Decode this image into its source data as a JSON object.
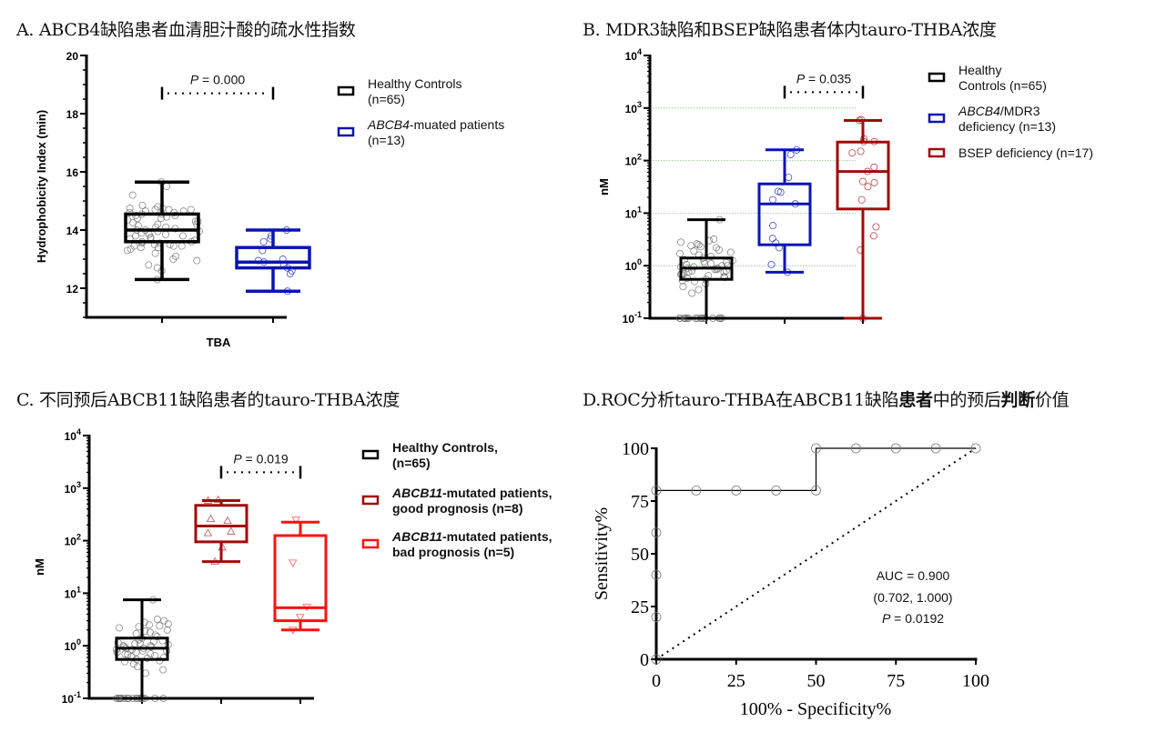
{
  "panels": {
    "A": {
      "title": "A. ABCB4缺陷患者血清胆汁酸的疏水性指数"
    },
    "B": {
      "title": "B. MDR3缺陷和BSEP缺陷患者体内tauro-THBA浓度"
    },
    "C": {
      "title": "C. 不同预后ABCB11缺陷患者的tauro-THBA浓度"
    },
    "D": {
      "title_a": "D.ROC分析tauro-THBA在ABCB11缺陷",
      "title_b": "患者",
      "title_c": "中的预后",
      "title_d": "判断",
      "title_e": "价值"
    }
  },
  "colors": {
    "black": "#000000",
    "blue": "#0a14b4",
    "darkred": "#a00a0a",
    "red": "#ff1010",
    "grid": "#8fbf8f"
  },
  "chart_data": [
    {
      "id": "A",
      "type": "box",
      "title": "A. ABCB4缺陷患者血清胆汁酸的疏水性指数",
      "ylabel": "Hydrophobicity Index (min)",
      "xlabel": "TBA",
      "ylim": [
        11,
        20
      ],
      "yticks": [
        {
          "v": 12,
          "label": "12"
        },
        {
          "v": 14,
          "label": "14"
        },
        {
          "v": 16,
          "label": "16"
        },
        {
          "v": 18,
          "label": "18"
        },
        {
          "v": 20,
          "label": "20"
        }
      ],
      "grid": false,
      "legend_position": "right",
      "significance": {
        "p_prefix": "P",
        "p_text": " = 0.000",
        "from": 0,
        "to": 1,
        "y": 18.7
      },
      "series": [
        {
          "name": "Healthy Controls",
          "name2": "(n=65)",
          "color": "#000000",
          "min": 12.3,
          "q1": 13.6,
          "median": 14.0,
          "q3": 14.55,
          "max": 15.65,
          "points": [
            15.65,
            15.5,
            15.2,
            14.85,
            14.8,
            14.75,
            14.75,
            14.7,
            14.7,
            14.7,
            14.65,
            14.65,
            14.6,
            14.6,
            14.55,
            14.55,
            14.5,
            14.5,
            14.45,
            14.4,
            14.4,
            14.35,
            14.3,
            14.3,
            14.25,
            14.2,
            14.2,
            14.15,
            14.1,
            14.1,
            14.05,
            14.0,
            14.0,
            13.95,
            13.95,
            13.9,
            13.85,
            13.85,
            13.8,
            13.8,
            13.75,
            13.7,
            13.7,
            13.65,
            13.6,
            13.6,
            13.55,
            13.55,
            13.5,
            13.5,
            13.45,
            13.45,
            13.45,
            13.4,
            13.4,
            13.35,
            13.3,
            13.2,
            13.1,
            13.0,
            12.95,
            12.8,
            12.7,
            12.6,
            12.3
          ]
        },
        {
          "name": "ABCB4",
          "name_suffix": "-muated patients",
          "name2": "(n=13)",
          "color": "#0a14b4",
          "min": 11.9,
          "q1": 12.7,
          "median": 12.9,
          "q3": 13.4,
          "max": 14.0,
          "points": [
            14.0,
            13.8,
            13.7,
            13.6,
            13.3,
            13.0,
            12.95,
            12.9,
            12.8,
            12.7,
            12.6,
            12.5,
            11.9
          ]
        }
      ]
    },
    {
      "id": "B",
      "type": "box",
      "title": "B. MDR3缺陷和BSEP缺陷患者体内tauro-THBA浓度",
      "ylabel": "nM",
      "yscale": "log",
      "ylim": [
        0.1,
        10000
      ],
      "yticks": [
        {
          "v": 0.1,
          "base": "10",
          "exp": "-1"
        },
        {
          "v": 1,
          "base": "10",
          "exp": "0"
        },
        {
          "v": 10,
          "base": "10",
          "exp": "1"
        },
        {
          "v": 100,
          "base": "10",
          "exp": "2"
        },
        {
          "v": 1000,
          "base": "10",
          "exp": "3"
        },
        {
          "v": 10000,
          "base": "10",
          "exp": "4"
        }
      ],
      "grid": true,
      "legend_position": "right",
      "significance": {
        "p_prefix": "P",
        "p_text": " = 0.035",
        "from": 1,
        "to": 2,
        "y": 2000
      },
      "series": [
        {
          "name": "Healthy",
          "name2": "Controls (n=65)",
          "color": "#000000",
          "min": 0.1,
          "q1": 0.55,
          "median": 0.9,
          "q3": 1.4,
          "max": 7.5,
          "points": [
            7.5,
            3.2,
            3.0,
            2.8,
            2.6,
            2.5,
            2.4,
            2.3,
            2.2,
            2.0,
            1.9,
            1.8,
            1.7,
            1.6,
            1.5,
            1.4,
            1.3,
            1.25,
            1.2,
            1.15,
            1.1,
            1.1,
            1.05,
            1.0,
            1.0,
            0.95,
            0.95,
            0.9,
            0.9,
            0.85,
            0.85,
            0.8,
            0.8,
            0.75,
            0.75,
            0.7,
            0.7,
            0.68,
            0.65,
            0.62,
            0.6,
            0.58,
            0.55,
            0.52,
            0.5,
            0.45,
            0.4,
            0.35,
            0.3,
            0.1,
            0.1,
            0.1,
            0.1,
            0.1,
            0.1,
            0.1,
            0.1,
            0.1,
            0.1,
            0.1,
            0.1,
            0.1,
            0.1,
            0.1,
            0.1
          ]
        },
        {
          "name": "ABCB4",
          "name_suffix": "/MDR3",
          "name2": "deficiency (n=13)",
          "color": "#0a14b4",
          "min": 0.75,
          "q1": 2.5,
          "median": 15,
          "q3": 36,
          "max": 160,
          "points": [
            160,
            130,
            48,
            26,
            25,
            18,
            15,
            5.8,
            3.3,
            2.7,
            2.2,
            1.05,
            0.75
          ]
        },
        {
          "name": "BSEP deficiency (n=17)",
          "color": "#a00a0a",
          "min": 0.1,
          "q1": 12,
          "median": 62,
          "q3": 225,
          "max": 580,
          "points": [
            600,
            580,
            260,
            230,
            230,
            150,
            140,
            75,
            62,
            40,
            38,
            32,
            18,
            5.5,
            3.7,
            2.0,
            0.1
          ]
        }
      ]
    },
    {
      "id": "C",
      "type": "box",
      "title": "C. 不同预后ABCB11缺陷患者的tauro-THBA浓度",
      "ylabel": "nM",
      "yscale": "log",
      "ylim": [
        0.1,
        10000
      ],
      "yticks": [
        {
          "v": 0.1,
          "base": "10",
          "exp": "-1"
        },
        {
          "v": 1,
          "base": "10",
          "exp": "0"
        },
        {
          "v": 10,
          "base": "10",
          "exp": "1"
        },
        {
          "v": 100,
          "base": "10",
          "exp": "2"
        },
        {
          "v": 1000,
          "base": "10",
          "exp": "3"
        },
        {
          "v": 10000,
          "base": "10",
          "exp": "4"
        }
      ],
      "grid": false,
      "legend_position": "right",
      "significance": {
        "p_prefix": "P",
        "p_text": " = 0.019",
        "from": 1,
        "to": 2,
        "y": 2000
      },
      "series": [
        {
          "name": "Healthy Controls,",
          "name2": "(n=65)",
          "color": "#000000",
          "marker": "circle",
          "min": 0.1,
          "q1": 0.55,
          "median": 0.9,
          "q3": 1.4,
          "max": 7.5,
          "points": [
            7.5,
            3.2,
            3.0,
            2.8,
            2.6,
            2.5,
            2.4,
            2.3,
            2.2,
            2.0,
            1.9,
            1.8,
            1.7,
            1.6,
            1.5,
            1.4,
            1.3,
            1.25,
            1.2,
            1.15,
            1.1,
            1.1,
            1.05,
            1.0,
            1.0,
            0.95,
            0.95,
            0.9,
            0.9,
            0.85,
            0.85,
            0.8,
            0.8,
            0.75,
            0.75,
            0.7,
            0.7,
            0.68,
            0.65,
            0.62,
            0.6,
            0.58,
            0.55,
            0.52,
            0.5,
            0.45,
            0.4,
            0.35,
            0.3,
            0.1,
            0.1,
            0.1,
            0.1,
            0.1,
            0.1,
            0.1,
            0.1,
            0.1,
            0.1,
            0.1,
            0.1,
            0.1,
            0.1,
            0.1,
            0.1
          ]
        },
        {
          "name": "ABCB11",
          "name_suffix": "-mutated patients,",
          "name2": "good prognosis (n=8)",
          "color": "#a00a0a",
          "marker": "triangle-up",
          "min": 40,
          "q1": 95,
          "median": 190,
          "q3": 470,
          "max": 580,
          "points": [
            600,
            580,
            260,
            240,
            150,
            140,
            75,
            40
          ]
        },
        {
          "name": "ABCB11",
          "name_suffix": "-mutated patients,",
          "name2": "bad prognosis (n=5)",
          "color": "#ff1010",
          "marker": "triangle-down",
          "min": 2.0,
          "q1": 3.0,
          "median": 5.3,
          "q3": 125,
          "max": 225,
          "points": [
            250,
            38,
            5.5,
            3.5,
            2.0
          ]
        }
      ]
    },
    {
      "id": "D",
      "type": "line",
      "title": "D.ROC分析tauro-THBA在ABCB11缺陷患者中的预后判断价值",
      "xlabel": "100% - Specificity%",
      "ylabel": "Sensitivity%",
      "xlim": [
        0,
        100
      ],
      "ylim": [
        0,
        100
      ],
      "xticks": [
        "0",
        "25",
        "50",
        "75",
        "100"
      ],
      "yticks": [
        "0",
        "25",
        "50",
        "75",
        "100"
      ],
      "grid": false,
      "roc_points": {
        "x": [
          0,
          0,
          0,
          0,
          0,
          12.5,
          25,
          37.5,
          50,
          50,
          62.5,
          75,
          87.5,
          100
        ],
        "y": [
          0,
          20,
          40,
          60,
          80,
          80,
          80,
          80,
          80,
          100,
          100,
          100,
          100,
          100
        ]
      },
      "reference_line": {
        "x": [
          0,
          100
        ],
        "y": [
          0,
          100
        ]
      },
      "annotation": {
        "auc": "AUC = 0.900",
        "ci": "(0.702, 1.000)",
        "p_prefix": "P",
        "p_text": " = 0.0192"
      }
    }
  ]
}
